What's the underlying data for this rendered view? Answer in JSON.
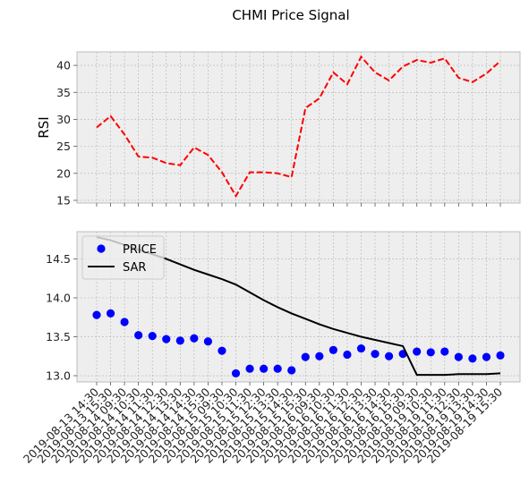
{
  "chart_data": {
    "title": "CHMI Price Signal",
    "x": [
      "2019-08-13 14:30",
      "2019-08-13 15:30",
      "2019-08-14 09:30",
      "2019-08-14 10:30",
      "2019-08-14 11:30",
      "2019-08-14 12:30",
      "2019-08-14 13:30",
      "2019-08-14 14:30",
      "2019-08-14 15:30",
      "2019-08-15 09:30",
      "2019-08-15 10:30",
      "2019-08-15 11:30",
      "2019-08-15 12:30",
      "2019-08-15 13:30",
      "2019-08-15 14:30",
      "2019-08-15 15:30",
      "2019-08-16 09:30",
      "2019-08-16 10:30",
      "2019-08-16 11:30",
      "2019-08-16 12:30",
      "2019-08-16 13:30",
      "2019-08-16 14:30",
      "2019-08-16 15:30",
      "2019-08-19 09:30",
      "2019-08-19 10:30",
      "2019-08-19 11:30",
      "2019-08-19 12:30",
      "2019-08-19 13:30",
      "2019-08-19 14:30",
      "2019-08-19 15:30"
    ],
    "panels": [
      {
        "type": "line",
        "ylabel": "RSI",
        "ylim": [
          14.5,
          42.5
        ],
        "yticks": [
          15,
          20,
          25,
          30,
          35,
          40
        ],
        "grid": true,
        "series": [
          {
            "color": "#ff0000",
            "style": "dashed",
            "values": [
              28.5,
              30.6,
              27.2,
              23.1,
              22.9,
              21.9,
              21.5,
              24.8,
              23.4,
              20.2,
              15.8,
              20.2,
              20.2,
              20.0,
              19.3,
              32.1,
              33.9,
              38.7,
              36.5,
              41.6,
              38.7,
              37.2,
              39.8,
              41.0,
              40.5,
              41.3,
              37.7,
              36.9,
              38.5,
              40.8
            ]
          }
        ]
      },
      {
        "type": "line+scatter",
        "ylabel": "",
        "ylim": [
          12.92,
          14.85
        ],
        "yticks": [
          13.0,
          13.5,
          14.0,
          14.5
        ],
        "grid": true,
        "legend": "top-left",
        "series": [
          {
            "name": "PRICE",
            "kind": "scatter",
            "color": "#0000ff",
            "values": [
              13.78,
              13.8,
              13.69,
              13.52,
              13.51,
              13.47,
              13.45,
              13.48,
              13.44,
              13.32,
              13.03,
              13.09,
              13.09,
              13.09,
              13.07,
              13.24,
              13.25,
              13.33,
              13.27,
              13.35,
              13.28,
              13.25,
              13.28,
              13.31,
              13.3,
              13.31,
              13.24,
              13.22,
              13.24,
              13.26
            ]
          },
          {
            "name": "SAR",
            "kind": "line",
            "color": "#000000",
            "values": [
              14.78,
              14.74,
              14.68,
              14.62,
              14.56,
              14.5,
              14.43,
              14.36,
              14.3,
              14.24,
              14.17,
              14.07,
              13.97,
              13.88,
              13.8,
              13.73,
              13.66,
              13.6,
              13.55,
              13.5,
              13.46,
              13.42,
              13.38,
              13.01,
              13.01,
              13.01,
              13.02,
              13.02,
              13.02,
              13.03
            ]
          }
        ]
      }
    ]
  }
}
